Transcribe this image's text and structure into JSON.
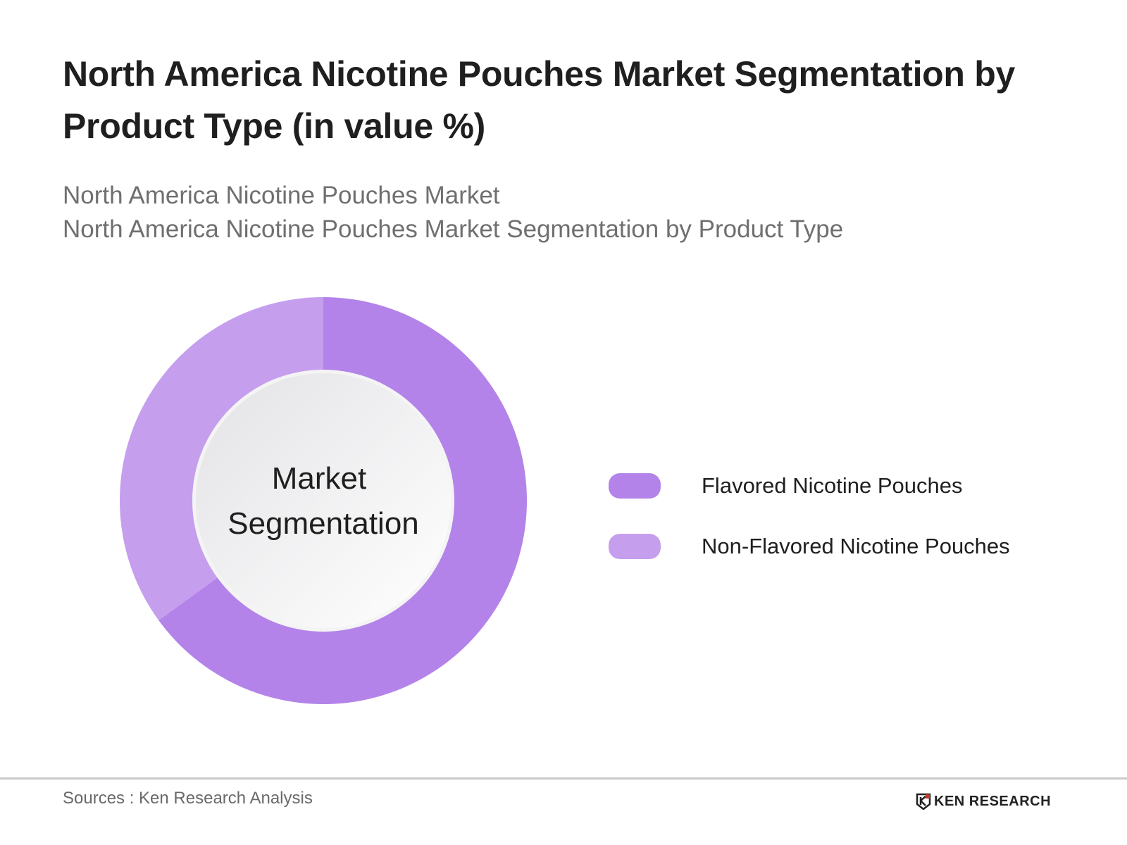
{
  "header": {
    "title": "North America Nicotine Pouches Market Segmentation by Product Type (in value %)",
    "subtitle_line1": "North America Nicotine Pouches Market",
    "subtitle_line2": "North America Nicotine Pouches Market Segmentation by Product Type"
  },
  "center_label": {
    "line1": "Market",
    "line2": "Segmentation"
  },
  "legend": [
    {
      "label": "Flavored Nicotine Pouches",
      "color": "#b383e9"
    },
    {
      "label": "Non-Flavored Nicotine Pouches",
      "color": "#c59eee"
    }
  ],
  "footer": {
    "source": "Sources : Ken Research Analysis",
    "logo_text": "KEN RESEARCH"
  },
  "chart_data": {
    "type": "pie",
    "subtype": "donut",
    "title": "North America Nicotine Pouches Market Segmentation by Product Type (in value %)",
    "subtitle": "North America Nicotine Pouches Market Segmentation by Product Type",
    "categories": [
      "Flavored Nicotine Pouches",
      "Non-Flavored Nicotine Pouches"
    ],
    "values": [
      65,
      35
    ],
    "colors": [
      "#b383e9",
      "#c59eee"
    ],
    "center_text": "Market Segmentation",
    "legend_position": "right",
    "data_labels_shown": false
  }
}
